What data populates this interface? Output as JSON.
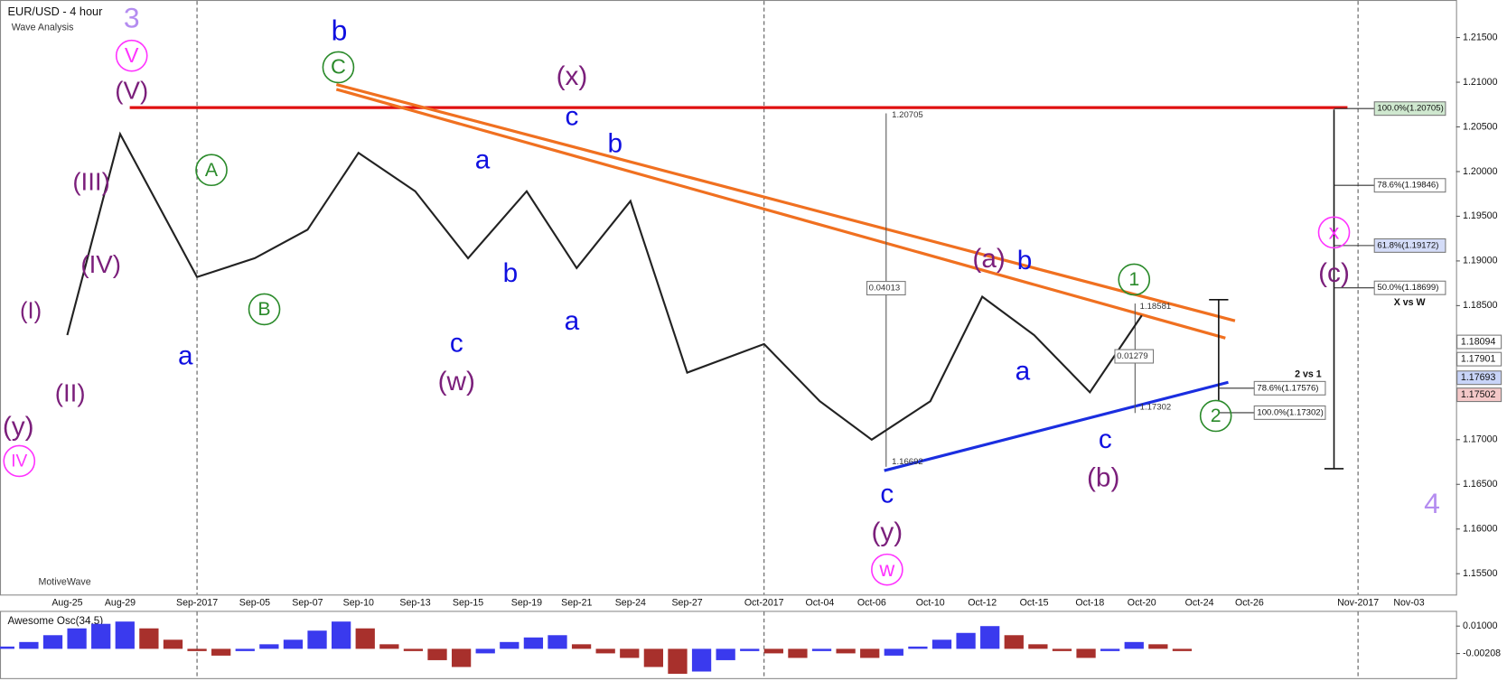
{
  "header": {
    "title": "EUR/USD - 4 hour",
    "subtitle": "Wave Analysis",
    "brand": "MotiveWave"
  },
  "chart_data": [
    {
      "type": "line",
      "color": "#222222",
      "categories": [
        "Aug-25",
        "Aug-29",
        "Sep-2017",
        "Sep-05",
        "Sep-07",
        "Sep-10",
        "Sep-13",
        "Sep-15",
        "Sep-19",
        "Sep-21",
        "Sep-24",
        "Sep-27",
        "Oct-2017",
        "Oct-04",
        "Oct-06",
        "Oct-10",
        "Oct-12",
        "Oct-15",
        "Oct-18",
        "Oct-20",
        "Oct-24",
        "Oct-26",
        "Nov-2017",
        "Nov-03"
      ],
      "values": [
        1.1817,
        1.2042,
        1.1882,
        1.1903,
        1.1935,
        1.2021,
        1.1978,
        1.1903,
        1.1978,
        1.1892,
        1.1967,
        1.1775,
        1.1807,
        1.1743,
        1.17,
        1.1743,
        1.186,
        1.1817,
        1.1753,
        1.1839,
        null,
        null,
        null,
        null
      ],
      "ylim": [
        1.1517,
        1.2192
      ],
      "yticks": [
        {
          "value": 1.215,
          "label": "1.21500"
        },
        {
          "value": 1.21,
          "label": "1.21000"
        },
        {
          "value": 1.205,
          "label": "1.20500"
        },
        {
          "value": 1.2,
          "label": "1.20000"
        },
        {
          "value": 1.195,
          "label": "1.19500"
        },
        {
          "value": 1.19,
          "label": "1.19000"
        },
        {
          "value": 1.185,
          "label": "1.18500"
        },
        {
          "value": 1.17,
          "label": "1.17000"
        },
        {
          "value": 1.165,
          "label": "1.16500"
        },
        {
          "value": 1.16,
          "label": "1.16000"
        },
        {
          "value": 1.155,
          "label": "1.15500"
        }
      ],
      "grid": false
    },
    {
      "type": "bar",
      "title": "Awesome Osc(34,5)",
      "up_color": "#3a3aee",
      "down_color": "#a8302c",
      "values": [
        0.001,
        0.003,
        0.006,
        0.009,
        0.011,
        0.012,
        0.009,
        0.004,
        -0.001,
        -0.003,
        -0.001,
        0.002,
        0.004,
        0.008,
        0.012,
        0.009,
        0.002,
        -0.001,
        -0.005,
        -0.008,
        -0.002,
        0.003,
        0.005,
        0.006,
        0.002,
        -0.002,
        -0.004,
        -0.008,
        -0.011,
        -0.01,
        -0.005,
        -0.001,
        -0.002,
        -0.004,
        -0.001,
        -0.002,
        -0.004,
        -0.003,
        0.001,
        0.004,
        0.007,
        0.01,
        0.006,
        0.002,
        -0.001,
        -0.004,
        -0.001,
        0.003,
        0.002,
        -0.001
      ],
      "ylim": [
        -0.0129,
        0.0167
      ],
      "yticks": [
        {
          "value": 0.01,
          "label": "0.01000"
        },
        {
          "value": -0.00208,
          "label": "-0.00208"
        }
      ]
    }
  ],
  "annotations": {
    "waves": [
      {
        "text": "3",
        "color": "#b48cf0"
      },
      {
        "text": "V",
        "color": "#ff33ff",
        "circle": true
      },
      {
        "text": "(V)",
        "color": "#7b1f7b"
      },
      {
        "text": "b",
        "color": "#1010e0"
      },
      {
        "text": "C",
        "color": "#2a8a2a",
        "circle": true
      },
      {
        "text": "(x)",
        "color": "#7b1f7b"
      },
      {
        "text": "c",
        "color": "#1010e0"
      },
      {
        "text": "b",
        "color": "#1010e0"
      },
      {
        "text": "a",
        "color": "#1010e0"
      },
      {
        "text": "A",
        "color": "#2a8a2a",
        "circle": true
      },
      {
        "text": "(III)",
        "color": "#7b1f7b"
      },
      {
        "text": "(IV)",
        "color": "#7b1f7b"
      },
      {
        "text": "B",
        "color": "#2a8a2a",
        "circle": true
      },
      {
        "text": "(I)",
        "color": "#7b1f7b"
      },
      {
        "text": "a",
        "color": "#1010e0"
      },
      {
        "text": "(II)",
        "color": "#7b1f7b"
      },
      {
        "text": "(y)",
        "color": "#7b1f7b"
      },
      {
        "text": "IV",
        "color": "#ff33ff",
        "circle": true
      },
      {
        "text": "b",
        "color": "#1010e0"
      },
      {
        "text": "c",
        "color": "#1010e0"
      },
      {
        "text": "(w)",
        "color": "#7b1f7b"
      },
      {
        "text": "a",
        "color": "#1010e0"
      },
      {
        "text": "(a)",
        "color": "#7b1f7b"
      },
      {
        "text": "b",
        "color": "#1010e0"
      },
      {
        "text": "1",
        "color": "#2a8a2a",
        "circle": true
      },
      {
        "text": "a",
        "color": "#1010e0"
      },
      {
        "text": "c",
        "color": "#1010e0"
      },
      {
        "text": "(b)",
        "color": "#7b1f7b"
      },
      {
        "text": "2",
        "color": "#2a8a2a",
        "circle": true
      },
      {
        "text": "x",
        "color": "#ff33ff",
        "circle": true
      },
      {
        "text": "(c)",
        "color": "#7b1f7b"
      },
      {
        "text": "c",
        "color": "#1010e0"
      },
      {
        "text": "(y)",
        "color": "#7b1f7b"
      },
      {
        "text": "w",
        "color": "#ff33ff",
        "circle": true
      },
      {
        "text": "4",
        "color": "#b48cf0"
      }
    ],
    "fib_levels": [
      {
        "value": 1.20705,
        "label": "100.0%(1.20705)",
        "fill": "#cfe8cf"
      },
      {
        "value": 1.19846,
        "label": "78.6%(1.19846)",
        "fill": "#ffffff"
      },
      {
        "value": 1.19172,
        "label": "61.8%(1.19172)",
        "fill": "#d4dcf8"
      },
      {
        "value": 1.18699,
        "label": "50.0%(1.18699)",
        "fill": "#ffffff"
      },
      {
        "value": 1.17576,
        "label": "78.6%(1.17576)",
        "fill": "#ffffff"
      },
      {
        "value": 1.17302,
        "label": "100.0%(1.17302)",
        "fill": "#ffffff"
      }
    ],
    "fib_notes": [
      "X vs W",
      "2 vs 1"
    ],
    "measures": [
      "1.20705",
      "0.04013",
      "1.16692",
      "1.18581",
      "0.01279",
      "1.17302"
    ],
    "price_tags": [
      {
        "value": 1.18094,
        "fill": "#ffffff"
      },
      {
        "value": 1.17901,
        "fill": "#ffffff"
      },
      {
        "value": 1.17693,
        "fill": "#c8d4f8"
      },
      {
        "value": 1.17502,
        "fill": "#f4c8c8"
      }
    ]
  }
}
